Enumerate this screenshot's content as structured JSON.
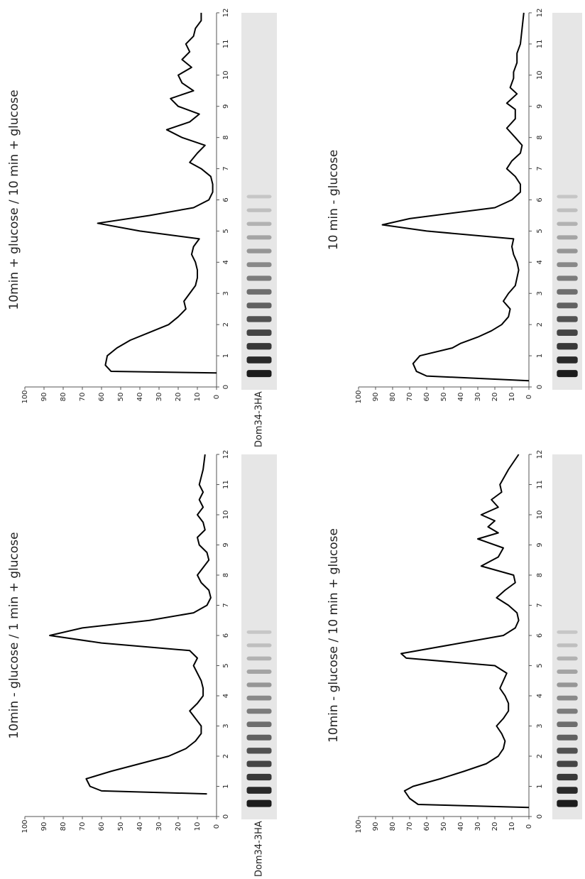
{
  "chart_data": [
    {
      "type": "line",
      "title": "10min + glucose / 10 min + glucose",
      "annotation": "Dom34-3HA",
      "x": [
        0.45,
        0.5,
        0.7,
        1.0,
        1.25,
        1.5,
        1.75,
        2.0,
        2.25,
        2.5,
        2.75,
        3.0,
        3.25,
        3.5,
        3.75,
        4.0,
        4.25,
        4.5,
        4.75,
        5.0,
        5.25,
        5.5,
        5.75,
        6.0,
        6.25,
        6.5,
        6.75,
        7.0,
        7.2,
        7.5,
        7.75,
        8.0,
        8.25,
        8.5,
        8.75,
        9.0,
        9.25,
        9.5,
        9.75,
        10.0,
        10.25,
        10.5,
        10.75,
        11.0,
        11.25,
        11.5,
        11.75,
        12.0
      ],
      "series": [
        {
          "color": "#000000",
          "values": [
            0,
            55,
            58,
            57,
            52,
            45,
            35,
            25,
            20,
            16,
            17,
            14,
            11,
            10,
            10,
            11,
            13,
            12,
            9,
            40,
            62,
            35,
            12,
            4,
            2,
            2,
            3,
            8,
            14,
            10,
            6,
            18,
            26,
            14,
            9,
            20,
            24,
            12,
            18,
            20,
            13,
            18,
            14,
            16,
            12,
            11,
            8,
            8
          ]
        }
      ],
      "xlim": [
        0,
        12
      ],
      "xticks": [
        0,
        1,
        2,
        3,
        4,
        5,
        6,
        7,
        8,
        9,
        10,
        11,
        12
      ],
      "ylim": [
        0,
        100
      ],
      "yticks": [
        0,
        10,
        20,
        30,
        40,
        50,
        60,
        70,
        80,
        90,
        100
      ]
    },
    {
      "type": "line",
      "title": "10 min - glucose",
      "x": [
        0.2,
        0.35,
        0.5,
        0.75,
        1.0,
        1.25,
        1.4,
        1.6,
        1.8,
        2.0,
        2.25,
        2.5,
        2.75,
        3.0,
        3.25,
        3.5,
        3.75,
        4.0,
        4.25,
        4.5,
        4.75,
        5.0,
        5.2,
        5.4,
        5.75,
        6.0,
        6.25,
        6.5,
        6.75,
        7.0,
        7.25,
        7.5,
        7.75,
        8.0,
        8.3,
        8.6,
        8.9,
        9.1,
        9.4,
        9.6,
        9.9,
        10.1,
        10.4,
        10.7,
        11.0,
        11.5,
        12.0
      ],
      "series": [
        {
          "color": "#000000",
          "values": [
            0,
            60,
            66,
            68,
            64,
            45,
            40,
            30,
            22,
            16,
            12,
            11,
            15,
            12,
            8,
            7,
            6,
            7,
            9,
            10,
            9,
            60,
            86,
            70,
            20,
            10,
            5,
            5,
            8,
            13,
            10,
            5,
            4,
            8,
            13,
            8,
            8,
            13,
            7,
            11,
            9,
            9,
            7,
            7,
            5,
            4,
            3
          ]
        }
      ],
      "xlim": [
        0,
        12
      ],
      "xticks": [
        0,
        1,
        2,
        3,
        4,
        5,
        6,
        7,
        8,
        9,
        10,
        11,
        12
      ],
      "ylim": [
        0,
        100
      ],
      "yticks": [
        0,
        10,
        20,
        30,
        40,
        50,
        60,
        70,
        80,
        90,
        100
      ]
    },
    {
      "type": "line",
      "title": "10min - glucose / 1 min + glucose",
      "annotation": "Dom34-3HA",
      "x": [
        0.75,
        0.85,
        1.0,
        1.25,
        1.5,
        1.75,
        2.0,
        2.25,
        2.5,
        2.75,
        3.0,
        3.25,
        3.5,
        3.75,
        4.0,
        4.25,
        4.5,
        4.75,
        5.0,
        5.25,
        5.5,
        5.75,
        6.0,
        6.25,
        6.5,
        6.75,
        7.0,
        7.25,
        7.5,
        7.75,
        8.0,
        8.25,
        8.5,
        8.75,
        9.0,
        9.25,
        9.5,
        9.75,
        10.0,
        10.25,
        10.5,
        10.75,
        11.0,
        11.5,
        12.0
      ],
      "series": [
        {
          "color": "#000000",
          "values": [
            5,
            60,
            66,
            68,
            55,
            40,
            25,
            16,
            11,
            8,
            8,
            11,
            14,
            10,
            7,
            7,
            8,
            10,
            12,
            10,
            14,
            60,
            87,
            70,
            35,
            12,
            5,
            3,
            4,
            8,
            10,
            7,
            4,
            5,
            9,
            10,
            6,
            7,
            10,
            7,
            9,
            7,
            9,
            7,
            6
          ]
        }
      ],
      "xlim": [
        0,
        12
      ],
      "xticks": [
        0,
        1,
        2,
        3,
        4,
        5,
        6,
        7,
        8,
        9,
        10,
        11,
        12
      ],
      "ylim": [
        0,
        100
      ],
      "yticks": [
        0,
        10,
        20,
        30,
        40,
        50,
        60,
        70,
        80,
        90,
        100
      ]
    },
    {
      "type": "line",
      "title": "10min - glucose / 10 min + glucose",
      "x": [
        0.3,
        0.4,
        0.6,
        0.85,
        1.0,
        1.25,
        1.5,
        1.75,
        2.0,
        2.25,
        2.5,
        2.75,
        3.0,
        3.25,
        3.5,
        3.75,
        4.0,
        4.25,
        4.5,
        4.75,
        5.0,
        5.25,
        5.4,
        5.75,
        6.0,
        6.25,
        6.5,
        6.75,
        7.0,
        7.25,
        7.5,
        7.75,
        8.0,
        8.3,
        8.6,
        8.9,
        9.2,
        9.4,
        9.6,
        9.8,
        10.0,
        10.25,
        10.5,
        10.75,
        11.0,
        11.5,
        12.0
      ],
      "series": [
        {
          "color": "#000000",
          "values": [
            0,
            65,
            70,
            73,
            68,
            52,
            38,
            25,
            18,
            15,
            14,
            16,
            19,
            15,
            12,
            12,
            14,
            17,
            15,
            13,
            20,
            72,
            75,
            40,
            15,
            8,
            6,
            7,
            12,
            19,
            14,
            8,
            9,
            28,
            18,
            15,
            30,
            18,
            24,
            20,
            28,
            18,
            22,
            16,
            17,
            12,
            6
          ]
        }
      ],
      "xlim": [
        0,
        12
      ],
      "xticks": [
        0,
        1,
        2,
        3,
        4,
        5,
        6,
        7,
        8,
        9,
        10,
        11,
        12
      ],
      "ylim": [
        0,
        100
      ],
      "yticks": [
        0,
        10,
        20,
        30,
        40,
        50,
        60,
        70,
        80,
        90,
        100
      ]
    }
  ]
}
